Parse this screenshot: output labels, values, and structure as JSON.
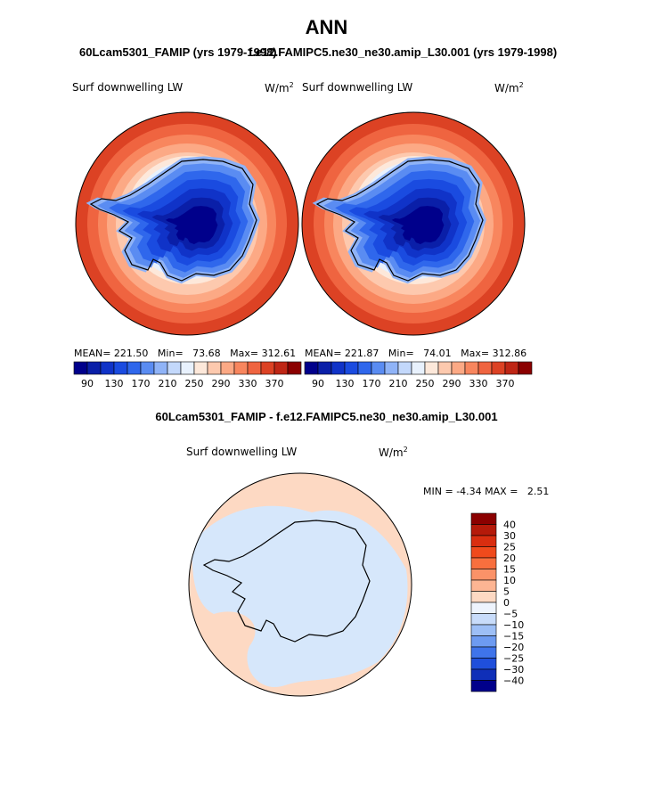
{
  "page_title": "ANN",
  "header": {
    "left_title": "60Lcam5301_FAMIP (yrs 1979-1998)",
    "right_title": "f.e12.FAMIPC5.ne30_ne30.amip_L30.001 (yrs 1979-1998)",
    "diff_title": "60Lcam5301_FAMIP - f.e12.FAMIPC5.ne30_ne30.amip_L30.001"
  },
  "chart_data": [
    {
      "type": "heatmap",
      "projection": "south-polar stereographic",
      "variable": "Surf downwelling LW",
      "units": "W/m²",
      "units_base": "W/m",
      "units_exp": "2",
      "stats": {
        "mean_label": "MEAN=",
        "mean": "221.50",
        "min_label": "Min=",
        "min": "73.68",
        "max_label": "Max=",
        "max": "312.61"
      },
      "colorbar": {
        "levels": [
          90,
          110,
          130,
          150,
          170,
          190,
          210,
          230,
          250,
          270,
          290,
          310,
          330,
          350,
          370
        ],
        "tick_labels": [
          "90",
          "130",
          "170",
          "210",
          "250",
          "290",
          "330",
          "370"
        ],
        "colors": [
          "#00008b",
          "#0a1fa8",
          "#1033c8",
          "#1a4be0",
          "#2f67ec",
          "#5a8cf2",
          "#8fb3f7",
          "#c3d8fb",
          "#e8f1fd",
          "#fde8da",
          "#fdc9ae",
          "#fca985",
          "#f8865e",
          "#ef6440",
          "#dc4224",
          "#bf2615",
          "#8b0000"
        ],
        "orientation": "horizontal"
      }
    },
    {
      "type": "heatmap",
      "projection": "south-polar stereographic",
      "variable": "Surf downwelling LW",
      "units": "W/m²",
      "units_base": "W/m",
      "units_exp": "2",
      "stats": {
        "mean_label": "MEAN=",
        "mean": "221.87",
        "min_label": "Min=",
        "min": "74.01",
        "max_label": "Max=",
        "max": "312.86"
      },
      "colorbar": {
        "levels": [
          90,
          110,
          130,
          150,
          170,
          190,
          210,
          230,
          250,
          270,
          290,
          310,
          330,
          350,
          370
        ],
        "tick_labels": [
          "90",
          "130",
          "170",
          "210",
          "250",
          "290",
          "330",
          "370"
        ],
        "colors": [
          "#00008b",
          "#0a1fa8",
          "#1033c8",
          "#1a4be0",
          "#2f67ec",
          "#5a8cf2",
          "#8fb3f7",
          "#c3d8fb",
          "#e8f1fd",
          "#fde8da",
          "#fdc9ae",
          "#fca985",
          "#f8865e",
          "#ef6440",
          "#dc4224",
          "#bf2615",
          "#8b0000"
        ],
        "orientation": "horizontal"
      }
    },
    {
      "type": "heatmap",
      "projection": "south-polar stereographic",
      "variable": "Surf downwelling LW",
      "units": "W/m²",
      "units_base": "W/m",
      "units_exp": "2",
      "stats": {
        "min_label": "MIN =",
        "min": "-4.34",
        "max_label": "MAX =",
        "max": "2.51"
      },
      "colorbar": {
        "levels": [
          40,
          30,
          25,
          20,
          15,
          10,
          5,
          0,
          -5,
          -10,
          -15,
          -20,
          -25,
          -30,
          -40
        ],
        "tick_labels": [
          "40",
          "30",
          "25",
          "20",
          "15",
          "10",
          "5",
          "0",
          "−5",
          "−10",
          "−15",
          "−20",
          "−25",
          "−30",
          "−40"
        ],
        "colors": [
          "#8b0000",
          "#b51a0a",
          "#d92e10",
          "#f04a1c",
          "#f86f3e",
          "#fb9268",
          "#fdb593",
          "#fdd9c3",
          "#eef4fd",
          "#c8dcfa",
          "#9dbff6",
          "#6d9bf1",
          "#3f74ea",
          "#1f4fdb",
          "#0f2fb8",
          "#00008b"
        ],
        "orientation": "vertical"
      }
    }
  ]
}
